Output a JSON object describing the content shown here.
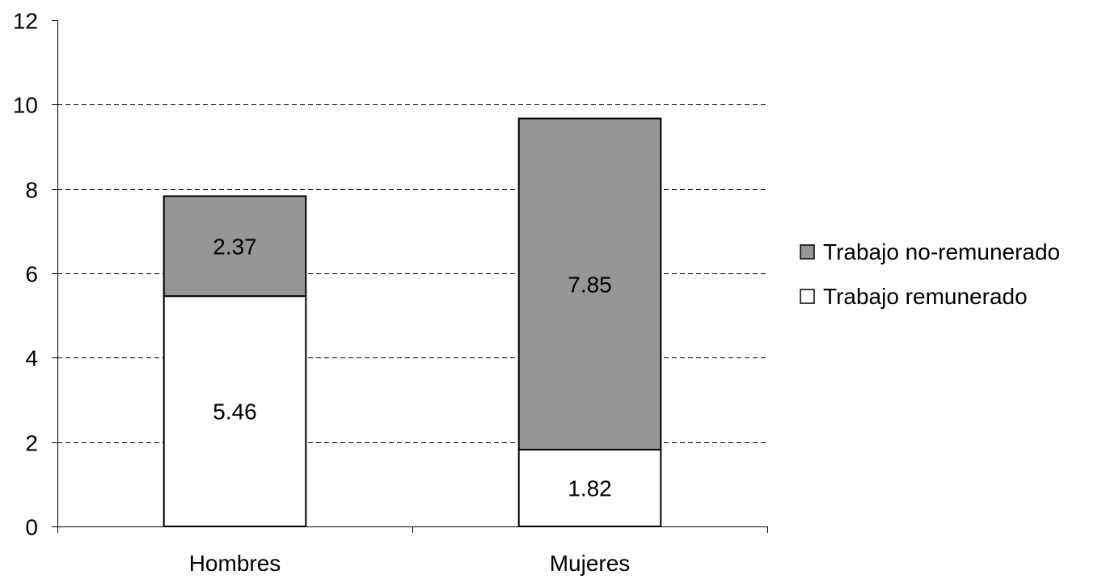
{
  "chart_data": {
    "type": "bar",
    "stacked": true,
    "title": "",
    "xlabel": "",
    "ylabel": "",
    "ylim": [
      0,
      12
    ],
    "yticks": [
      0,
      2,
      4,
      6,
      8,
      10,
      12
    ],
    "grid": true,
    "legend_position": "right",
    "categories": [
      "Hombres",
      "Mujeres"
    ],
    "series": [
      {
        "name": "Trabajo remunerado",
        "values": [
          5.46,
          1.82
        ],
        "color": "#ffffff",
        "labels": [
          "5.46",
          "1.82"
        ]
      },
      {
        "name": "Trabajo no-remunerado",
        "values": [
          2.37,
          7.85
        ],
        "color": "#969696",
        "labels": [
          "2.37",
          "7.85"
        ]
      }
    ],
    "legend_order": [
      1,
      0
    ]
  }
}
